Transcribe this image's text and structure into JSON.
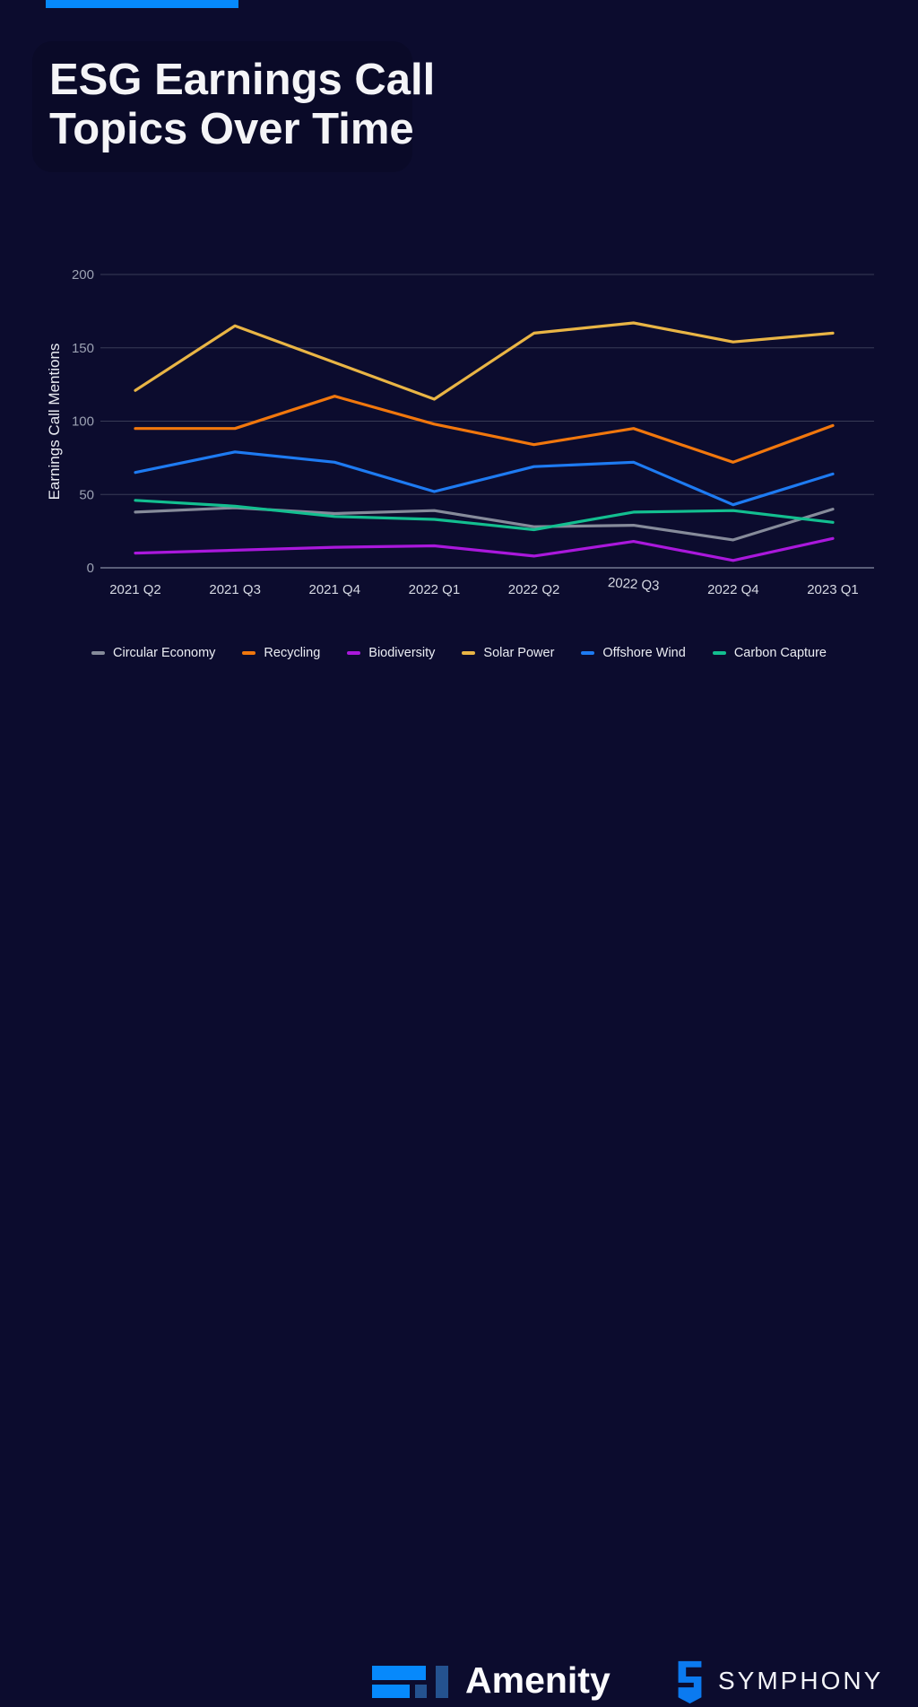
{
  "page": {
    "background": "#0C0C2E",
    "accent_bar_color": "#0689FC"
  },
  "title": {
    "line1": "ESG Earnings Call",
    "line2": "Topics Over Time"
  },
  "chart_data": {
    "type": "line",
    "title": "",
    "xlabel": "",
    "ylabel": "Earnings Call Mentions",
    "categories": [
      "2021 Q2",
      "2021 Q3",
      "2021 Q4",
      "2022 Q1",
      "2022 Q2",
      "2022 Q3",
      "2022 Q4",
      "2023 Q1"
    ],
    "yticks": [
      0,
      50,
      100,
      150,
      200
    ],
    "ylim": [
      0,
      200
    ],
    "grid": "horizontal",
    "legend_position": "bottom",
    "gridline_color": "#383B56",
    "axis_line_color": "#5A5E78",
    "tick_label_color": "#9BA1B2",
    "x_label_color": "#D6D9E3",
    "axis_title_color": "#E9EBF2",
    "series": [
      {
        "name": "Circular Economy",
        "color": "#868B9A",
        "values": [
          38,
          41,
          37,
          39,
          28,
          29,
          19,
          40
        ]
      },
      {
        "name": "Recycling",
        "color": "#F1770D",
        "values": [
          95,
          95,
          117,
          98,
          84,
          95,
          72,
          97
        ]
      },
      {
        "name": "Biodiversity",
        "color": "#AA18DC",
        "values": [
          10,
          12,
          14,
          15,
          8,
          18,
          5,
          20
        ]
      },
      {
        "name": "Solar Power",
        "color": "#E9B545",
        "values": [
          121,
          165,
          140,
          115,
          160,
          167,
          154,
          160
        ]
      },
      {
        "name": "Offshore Wind",
        "color": "#1E7BF2",
        "values": [
          65,
          79,
          72,
          52,
          69,
          72,
          43,
          64
        ]
      },
      {
        "name": "Carbon Capture",
        "color": "#13BF90",
        "values": [
          46,
          42,
          35,
          33,
          26,
          38,
          39,
          31
        ]
      }
    ]
  },
  "footer": {
    "amenity_label": "Amenity",
    "symphony_label": "SYMPHONY",
    "amenity_bright_blue": "#0689FC",
    "amenity_dark_blue": "#24528F",
    "symphony_blue": "#0B7AF0"
  }
}
